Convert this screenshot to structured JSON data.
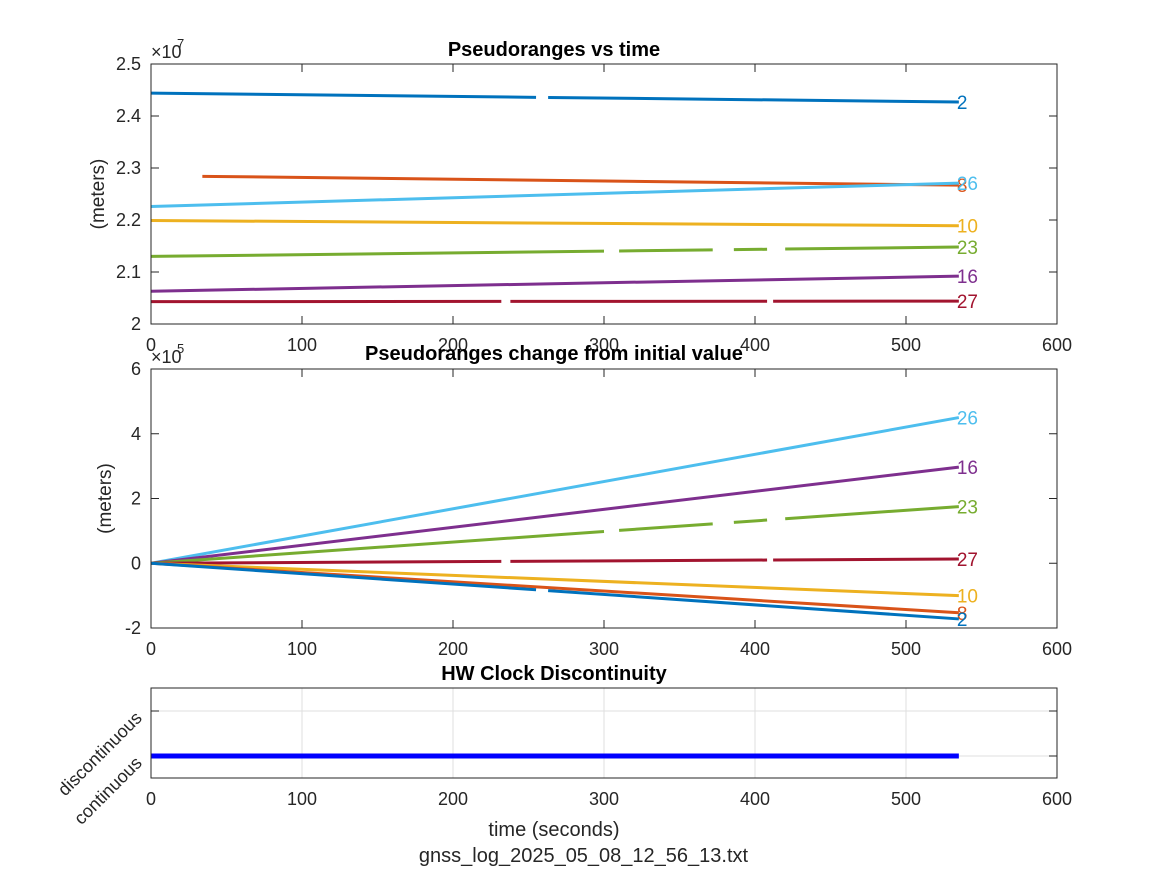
{
  "chart_data": [
    {
      "type": "line",
      "title": "Pseudoranges vs time",
      "ylabel": "(meters)",
      "xlabel": "",
      "xlim": [
        0,
        600
      ],
      "ylim": [
        20000000,
        25000000
      ],
      "x_ticks": [
        0,
        100,
        200,
        300,
        400,
        500,
        600
      ],
      "y_ticks": [
        20000000,
        21000000,
        22000000,
        23000000,
        24000000,
        25000000
      ],
      "y_tick_labels": [
        "2",
        "2.1",
        "2.2",
        "2.3",
        "2.4",
        "2.5"
      ],
      "y_exponent": "×10",
      "y_exponent_power": "7",
      "grid": false,
      "series": [
        {
          "name": "2",
          "color": "#0072BD",
          "start": [
            0,
            24440000
          ],
          "end": [
            535,
            24270000
          ],
          "gaps": [
            [
              255,
              263
            ]
          ]
        },
        {
          "name": "8",
          "color": "#D95319",
          "start": [
            34,
            22840000
          ],
          "end": [
            535,
            22670000
          ],
          "gaps": []
        },
        {
          "name": "26",
          "color": "#4DBEEE",
          "start": [
            0,
            22260000
          ],
          "end": [
            535,
            22710000
          ],
          "gaps": []
        },
        {
          "name": "10",
          "color": "#EDB120",
          "start": [
            0,
            21990000
          ],
          "end": [
            535,
            21890000
          ],
          "gaps": []
        },
        {
          "name": "23",
          "color": "#77AC30",
          "start": [
            0,
            21300000
          ],
          "end": [
            535,
            21480000
          ],
          "gaps": [
            [
              300,
              310
            ],
            [
              372,
              386
            ],
            [
              408,
              420
            ]
          ]
        },
        {
          "name": "16",
          "color": "#7E2F8E",
          "start": [
            0,
            20630000
          ],
          "end": [
            535,
            20920000
          ],
          "gaps": []
        },
        {
          "name": "27",
          "color": "#A2142F",
          "start": [
            0,
            20430000
          ],
          "end": [
            535,
            20440000
          ],
          "gaps": [
            [
              232,
              238
            ],
            [
              408,
              412
            ]
          ]
        }
      ]
    },
    {
      "type": "line",
      "title": "Pseudoranges change from initial value",
      "ylabel": "(meters)",
      "xlabel": "",
      "xlim": [
        0,
        600
      ],
      "ylim": [
        -200000,
        600000
      ],
      "x_ticks": [
        0,
        100,
        200,
        300,
        400,
        500,
        600
      ],
      "y_ticks": [
        -200000,
        0,
        200000,
        400000,
        600000
      ],
      "y_tick_labels": [
        "-2",
        "0",
        "2",
        "4",
        "6"
      ],
      "y_exponent": "×10",
      "y_exponent_power": "5",
      "grid": false,
      "series": [
        {
          "name": "26",
          "color": "#4DBEEE",
          "end_value": 450000,
          "gaps": []
        },
        {
          "name": "16",
          "color": "#7E2F8E",
          "end_value": 297000,
          "gaps": []
        },
        {
          "name": "23",
          "color": "#77AC30",
          "end_value": 175000,
          "gaps": [
            [
              300,
              310
            ],
            [
              372,
              386
            ],
            [
              408,
              420
            ]
          ]
        },
        {
          "name": "27",
          "color": "#A2142F",
          "end_value": 13000,
          "gaps": [
            [
              232,
              238
            ],
            [
              408,
              412
            ]
          ]
        },
        {
          "name": "10",
          "color": "#EDB120",
          "end_value": -100000,
          "gaps": []
        },
        {
          "name": "8",
          "color": "#D95319",
          "end_value": -153000,
          "gaps": []
        },
        {
          "name": "2",
          "color": "#0072BD",
          "end_value": -172000,
          "gaps": [
            [
              255,
              263
            ]
          ]
        }
      ]
    },
    {
      "type": "line",
      "title": "HW Clock Discontinuity",
      "xlabel": "time (seconds)",
      "ylabel": "",
      "xlim": [
        0,
        600
      ],
      "x_ticks": [
        0,
        100,
        200,
        300,
        400,
        500,
        600
      ],
      "y_categories": [
        "continuous",
        "discontinuous"
      ],
      "grid": true,
      "series": [
        {
          "color": "#0000FF",
          "x": [
            0,
            535
          ],
          "value": "continuous"
        }
      ]
    }
  ],
  "footer": {
    "filename": "gnss_log_2025_05_08_12_56_13.txt"
  }
}
